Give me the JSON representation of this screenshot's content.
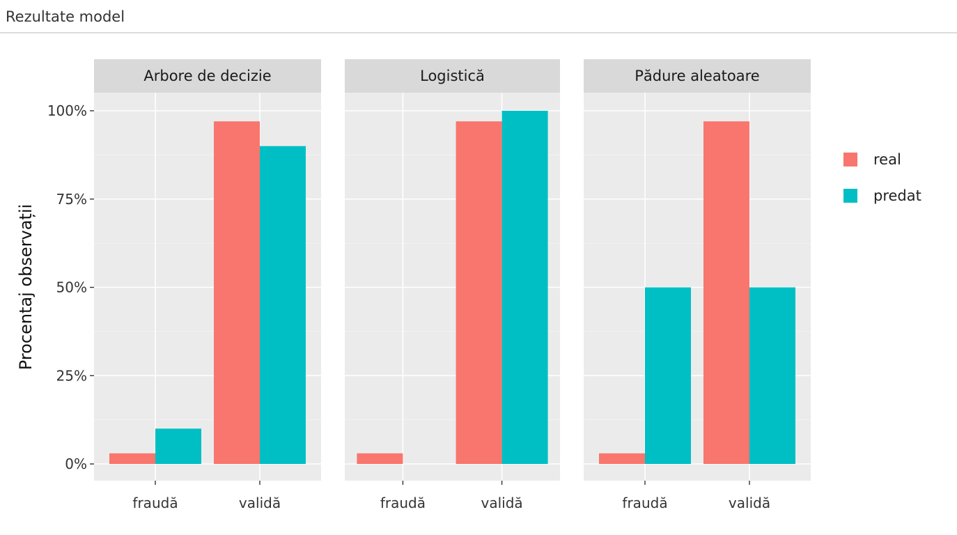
{
  "window": {
    "title": "Rezultate model"
  },
  "chart_data": {
    "type": "bar",
    "facets": [
      "Arbore de decizie",
      "Logistică",
      "Pădure aleatoare"
    ],
    "categories": [
      "fraudă",
      "validă"
    ],
    "ylabel": "Procentaj observații",
    "xlabel": "",
    "ylim": [
      0,
      110
    ],
    "yticks": [
      0,
      25,
      50,
      75,
      100
    ],
    "ytick_labels": [
      "0%",
      "25%",
      "50%",
      "75%",
      "100%"
    ],
    "legend": {
      "placement": "right",
      "entries": [
        "real",
        "predat"
      ]
    },
    "colors": {
      "real": "#f8766d",
      "predat": "#00bfc4"
    },
    "series": [
      {
        "name": "real",
        "facet": "Arbore de decizie",
        "values": [
          3,
          97
        ]
      },
      {
        "name": "predat",
        "facet": "Arbore de decizie",
        "values": [
          10,
          90
        ]
      },
      {
        "name": "real",
        "facet": "Logistică",
        "values": [
          3,
          97
        ]
      },
      {
        "name": "predat",
        "facet": "Logistică",
        "values": [
          0,
          100
        ]
      },
      {
        "name": "real",
        "facet": "Pădure aleatoare",
        "values": [
          3,
          97
        ]
      },
      {
        "name": "predat",
        "facet": "Pădure aleatoare",
        "values": [
          50,
          50
        ]
      }
    ],
    "grid": true
  }
}
